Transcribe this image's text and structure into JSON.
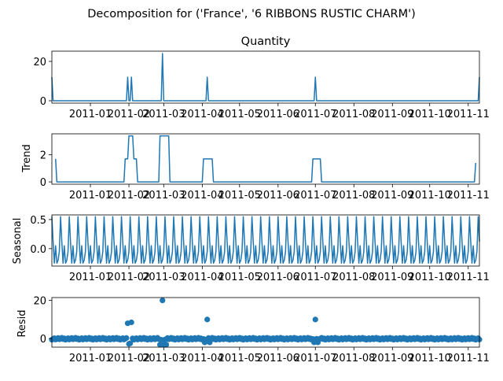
{
  "figure": {
    "suptitle": "Decomposition for ('France', '6 RIBBONS RUSTIC CHARM')"
  },
  "colors": {
    "series": "#1f77b4",
    "axes": "#000000",
    "background": "#ffffff"
  },
  "chart_data": [
    {
      "type": "line",
      "title": "Quantity",
      "xlabel": "",
      "ylabel": "",
      "x_range": [
        "2010-12-01",
        "2011-11-10"
      ],
      "ylim": [
        -1.2,
        25.2
      ],
      "yticks": [
        0,
        20
      ],
      "xtick_dates": [
        "2011-01-01",
        "2011-02-01",
        "2011-03-01",
        "2011-04-01",
        "2011-05-01",
        "2011-06-01",
        "2011-07-01",
        "2011-08-01",
        "2011-09-01",
        "2011-10-01",
        "2011-11-01"
      ],
      "xtick_labels": [
        "2011-01",
        "2011-02",
        "2011-03",
        "2011-04",
        "2011-05",
        "2011-06",
        "2011-07",
        "2011-08",
        "2011-09",
        "2011-10",
        "2011-11"
      ],
      "baseline": 0,
      "nonzero": [
        {
          "x": "2010-12-01",
          "y": 12
        },
        {
          "x": "2011-01-31",
          "y": 12
        },
        {
          "x": "2011-02-03",
          "y": 12
        },
        {
          "x": "2011-02-28",
          "y": 24
        },
        {
          "x": "2011-04-05",
          "y": 12
        },
        {
          "x": "2011-07-01",
          "y": 12
        },
        {
          "x": "2011-11-10",
          "y": 12
        }
      ]
    },
    {
      "type": "line",
      "title": "",
      "xlabel": "",
      "ylabel": "Trend",
      "x_range": [
        "2010-12-01",
        "2011-11-10"
      ],
      "ylim": [
        -0.17,
        3.55
      ],
      "yticks": [
        0,
        2
      ],
      "xtick_dates": [
        "2011-01-01",
        "2011-02-01",
        "2011-03-01",
        "2011-04-01",
        "2011-05-01",
        "2011-06-01",
        "2011-07-01",
        "2011-08-01",
        "2011-09-01",
        "2011-10-01",
        "2011-11-01"
      ],
      "xtick_labels": [
        "2011-01",
        "2011-02",
        "2011-03",
        "2011-04",
        "2011-05",
        "2011-06",
        "2011-07",
        "2011-08",
        "2011-09",
        "2011-10",
        "2011-11"
      ],
      "points": [
        {
          "x": "2010-12-04",
          "y": 1.7
        },
        {
          "x": "2010-12-05",
          "y": 0
        },
        {
          "x": "2011-01-28",
          "y": 0
        },
        {
          "x": "2011-01-29",
          "y": 1.7
        },
        {
          "x": "2011-01-31",
          "y": 1.7
        },
        {
          "x": "2011-02-01",
          "y": 3.4
        },
        {
          "x": "2011-02-04",
          "y": 3.4
        },
        {
          "x": "2011-02-05",
          "y": 1.7
        },
        {
          "x": "2011-02-07",
          "y": 1.7
        },
        {
          "x": "2011-02-08",
          "y": 0
        },
        {
          "x": "2011-02-25",
          "y": 0
        },
        {
          "x": "2011-02-26",
          "y": 3.4
        },
        {
          "x": "2011-03-05",
          "y": 3.4
        },
        {
          "x": "2011-03-06",
          "y": 0
        },
        {
          "x": "2011-04-01",
          "y": 0
        },
        {
          "x": "2011-04-02",
          "y": 1.7
        },
        {
          "x": "2011-04-09",
          "y": 1.7
        },
        {
          "x": "2011-04-10",
          "y": 0
        },
        {
          "x": "2011-06-28",
          "y": 0
        },
        {
          "x": "2011-06-29",
          "y": 1.7
        },
        {
          "x": "2011-07-05",
          "y": 1.7
        },
        {
          "x": "2011-07-06",
          "y": 0
        },
        {
          "x": "2011-11-06",
          "y": 0
        },
        {
          "x": "2011-11-07",
          "y": 1.4
        }
      ]
    },
    {
      "type": "line",
      "title": "",
      "xlabel": "",
      "ylabel": "Seasonal",
      "x_range": [
        "2010-12-01",
        "2011-11-10"
      ],
      "ylim": [
        -0.3,
        0.58
      ],
      "yticks": [
        0.0,
        0.5
      ],
      "ytick_labels": [
        "0.0",
        "0.5"
      ],
      "xtick_dates": [
        "2011-01-01",
        "2011-02-01",
        "2011-03-01",
        "2011-04-01",
        "2011-05-01",
        "2011-06-01",
        "2011-07-01",
        "2011-08-01",
        "2011-09-01",
        "2011-10-01",
        "2011-11-01"
      ],
      "xtick_labels": [
        "2011-01",
        "2011-02",
        "2011-03",
        "2011-04",
        "2011-05",
        "2011-06",
        "2011-07",
        "2011-08",
        "2011-09",
        "2011-10",
        "2011-11"
      ],
      "period_days": 7,
      "weekly_pattern": [
        0.55,
        0.12,
        -0.25,
        0.05,
        -0.25,
        -0.2,
        -0.05
      ]
    },
    {
      "type": "scatter",
      "title": "",
      "xlabel": "",
      "ylabel": "Resid",
      "x_range": [
        "2010-12-01",
        "2011-11-10"
      ],
      "ylim": [
        -4.5,
        21.5
      ],
      "yticks": [
        0,
        20
      ],
      "xtick_dates": [
        "2011-01-01",
        "2011-02-01",
        "2011-03-01",
        "2011-04-01",
        "2011-05-01",
        "2011-06-01",
        "2011-07-01",
        "2011-08-01",
        "2011-09-01",
        "2011-10-01",
        "2011-11-01"
      ],
      "xtick_labels": [
        "2011-01",
        "2011-02",
        "2011-03",
        "2011-04",
        "2011-05",
        "2011-06",
        "2011-07",
        "2011-08",
        "2011-09",
        "2011-10",
        "2011-11"
      ],
      "baseline_range": [
        -0.6,
        0.4
      ],
      "outliers": [
        {
          "x": "2011-01-31",
          "y": 8
        },
        {
          "x": "2011-02-03",
          "y": 8.5
        },
        {
          "x": "2011-02-28",
          "y": 20
        },
        {
          "x": "2011-04-05",
          "y": 10
        },
        {
          "x": "2011-07-01",
          "y": 10
        },
        {
          "x": "2011-02-01",
          "y": -2.8
        },
        {
          "x": "2011-02-02",
          "y": -2.5
        },
        {
          "x": "2011-02-26",
          "y": -3.2
        },
        {
          "x": "2011-03-01",
          "y": -3.2
        },
        {
          "x": "2011-03-03",
          "y": -3.2
        },
        {
          "x": "2011-04-03",
          "y": -2.0
        },
        {
          "x": "2011-04-07",
          "y": -2.0
        },
        {
          "x": "2011-06-30",
          "y": -2.0
        },
        {
          "x": "2011-07-03",
          "y": -2.0
        }
      ]
    }
  ]
}
